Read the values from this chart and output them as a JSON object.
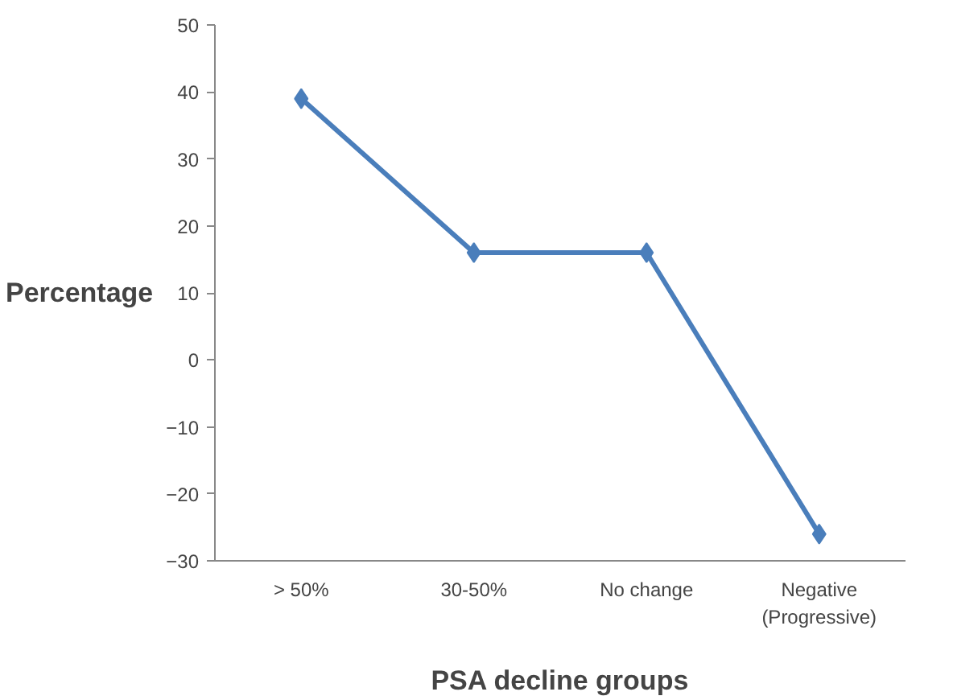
{
  "chart_data": {
    "type": "line",
    "xlabel": "PSA decline groups",
    "ylabel": "Percentage",
    "categories": [
      "> 50%",
      "30-50%",
      "No change",
      "Negative\n(Progressive)"
    ],
    "series": [
      {
        "color": "#4a7ebb",
        "values": [
          39,
          16,
          16,
          -26
        ]
      }
    ],
    "ylim": [
      -30,
      50
    ],
    "yticks": [
      -30,
      -20,
      -10,
      0,
      10,
      20,
      30,
      40,
      50
    ],
    "grid": false,
    "marker": "diamond",
    "line_style": "solid"
  }
}
